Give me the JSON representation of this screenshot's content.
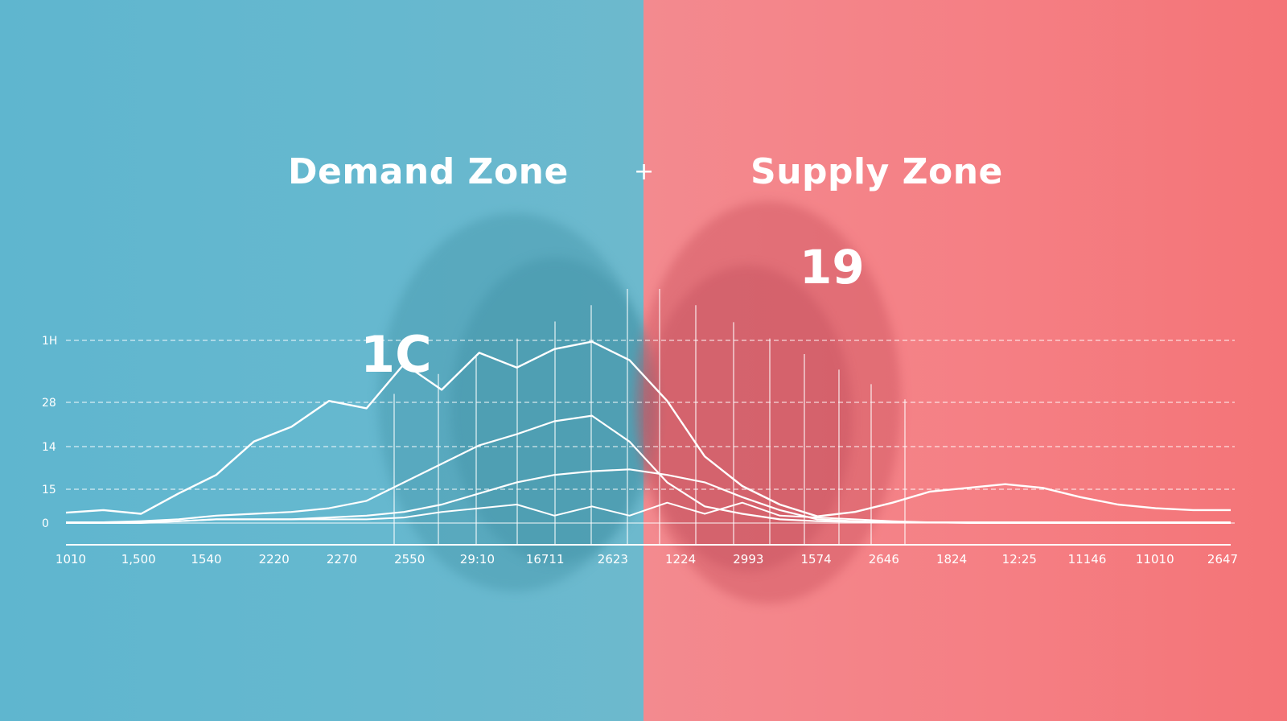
{
  "colors": {
    "demand_bg": "#62b7cf",
    "supply_bg": "#f57d82",
    "line": "#ffffff",
    "accent_line": "#e9a6d6"
  },
  "labels": {
    "demand_title": "Demand Zone",
    "supply_title": "Supply Zone",
    "separator": "+",
    "demand_callout": "1C",
    "supply_callout": "19"
  },
  "chart_data": {
    "type": "line",
    "title": "",
    "xlabel": "",
    "ylabel": "",
    "x_tick_labels": [
      "1010",
      "1,500",
      "1540",
      "2220",
      "2270",
      "2550",
      "29:10",
      "16711",
      "2623",
      "1224",
      "2993",
      "1574",
      "2646",
      "1824",
      "12:25",
      "11146",
      "11010",
      "2647"
    ],
    "y_tick_labels": [
      "0",
      "15",
      "14",
      "28",
      "1H"
    ],
    "grid": "horizontal dashed",
    "series": [
      {
        "values": [
          0.28,
          0.35,
          0.25,
          0.8,
          1.3,
          2.2,
          2.6,
          3.3,
          3.1,
          4.3,
          3.6,
          4.6,
          4.2,
          4.7,
          4.9,
          4.4,
          3.3,
          1.8,
          1.0,
          0.5,
          0.18,
          0.3,
          0.55,
          0.85,
          0.95,
          1.05,
          0.95,
          0.7,
          0.5,
          0.4,
          0.35,
          0.35
        ]
      },
      {
        "values": [
          0.02,
          0.02,
          0.05,
          0.1,
          0.2,
          0.25,
          0.3,
          0.4,
          0.6,
          1.1,
          1.6,
          2.1,
          2.4,
          2.75,
          2.9,
          2.2,
          1.1,
          0.45,
          0.25,
          0.1,
          0.05,
          0.03,
          0.02,
          0.02,
          0.02,
          0.02,
          0.02,
          0.02,
          0.02,
          0.02,
          0.02,
          0.02
        ]
      },
      {
        "values": [
          0.02,
          0.02,
          0.03,
          0.05,
          0.1,
          0.1,
          0.1,
          0.15,
          0.2,
          0.3,
          0.5,
          0.8,
          1.1,
          1.3,
          1.4,
          1.45,
          1.3,
          1.1,
          0.7,
          0.35,
          0.1,
          0.05,
          0.02,
          0.02,
          0.02,
          0.02,
          0.02,
          0.02,
          0.02,
          0.02,
          0.02,
          0.02
        ]
      },
      {
        "values": [
          0.0,
          0.0,
          0.0,
          0.05,
          0.1,
          0.1,
          0.1,
          0.1,
          0.1,
          0.15,
          0.3,
          0.4,
          0.5,
          0.2,
          0.45,
          0.2,
          0.55,
          0.25,
          0.55,
          0.2,
          0.15,
          0.1,
          0.05,
          0.02,
          0.0,
          0.0,
          0.0,
          0.0,
          0.0,
          0.0,
          0.0,
          0.0
        ]
      }
    ]
  }
}
